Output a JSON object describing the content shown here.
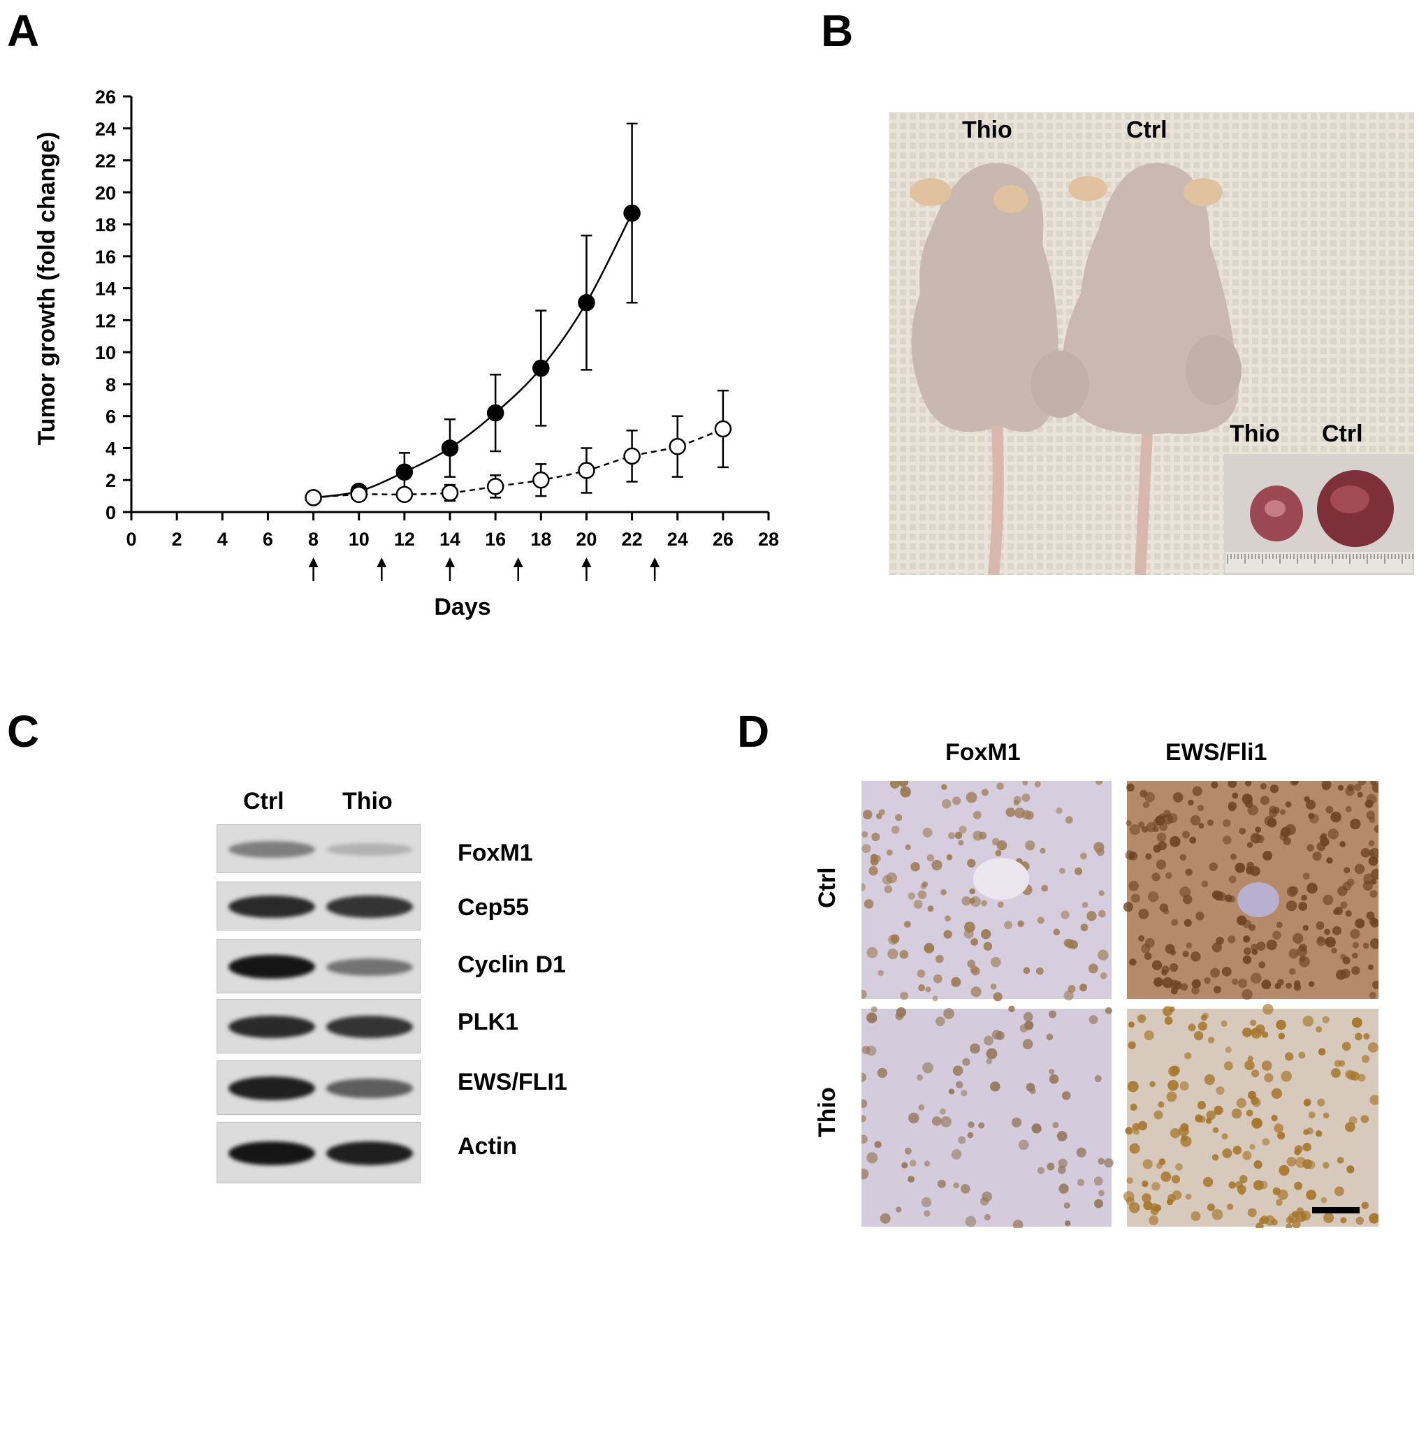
{
  "panels": {
    "a": "A",
    "b": "B",
    "c": "C",
    "d": "D"
  },
  "colors": {
    "photo_bg": "#e6dfd6",
    "mouse": "#c7b7ae",
    "tumor": "#8c3b45",
    "ihc_bg": "#d7cfe0",
    "ihc_nuclei": "#8a6a45",
    "blot_bg": "#dedede"
  },
  "chart_data": {
    "type": "line",
    "xlabel": "Days",
    "ylabel": "Tumor growth (fold change)",
    "xlim": [
      0,
      28
    ],
    "ylim": [
      0,
      26
    ],
    "xticks": [
      0,
      2,
      4,
      6,
      8,
      10,
      12,
      14,
      16,
      18,
      20,
      22,
      24,
      26,
      28
    ],
    "yticks": [
      0,
      2,
      4,
      6,
      8,
      10,
      12,
      14,
      16,
      18,
      20,
      22,
      24,
      26
    ],
    "grid": false,
    "series": [
      {
        "style": "filled-solid",
        "x": [
          8,
          10,
          12,
          14,
          16,
          18,
          20,
          22
        ],
        "y": [
          0.9,
          1.3,
          2.5,
          4.0,
          6.2,
          9.0,
          13.1,
          18.7
        ],
        "err": [
          0.2,
          0.3,
          1.2,
          1.8,
          2.4,
          3.6,
          4.2,
          5.6
        ]
      },
      {
        "style": "open-dashed",
        "x": [
          8,
          10,
          12,
          14,
          16,
          18,
          20,
          22,
          24,
          26
        ],
        "y": [
          0.9,
          1.1,
          1.1,
          1.2,
          1.6,
          2.0,
          2.6,
          3.5,
          4.1,
          5.2
        ],
        "err": [
          0.1,
          0.3,
          0.3,
          0.5,
          0.7,
          1.0,
          1.4,
          1.6,
          1.9,
          2.4
        ]
      }
    ],
    "arrows_at": [
      8,
      11,
      14,
      17,
      20,
      23
    ]
  },
  "photo_b": {
    "mouse_left": "Thio",
    "mouse_right": "Ctrl",
    "inset_left": "Thio",
    "inset_right": "Ctrl"
  },
  "blot": {
    "lanes": [
      "Ctrl",
      "Thio"
    ],
    "rows": [
      {
        "label": "FoxM1",
        "ctrl": 0.45,
        "thio": 0.2
      },
      {
        "label": "Cep55",
        "ctrl": 0.85,
        "thio": 0.8
      },
      {
        "label": "Cyclin D1",
        "ctrl": 0.95,
        "thio": 0.5
      },
      {
        "label": "PLK1",
        "ctrl": 0.85,
        "thio": 0.8
      },
      {
        "label": "EWS/FLI1",
        "ctrl": 0.9,
        "thio": 0.6
      },
      {
        "label": "Actin",
        "ctrl": 0.95,
        "thio": 0.9
      }
    ]
  },
  "ihc": {
    "columns": [
      "FoxM1",
      "EWS/Fli1"
    ],
    "rows": [
      "Ctrl",
      "Thio"
    ]
  }
}
